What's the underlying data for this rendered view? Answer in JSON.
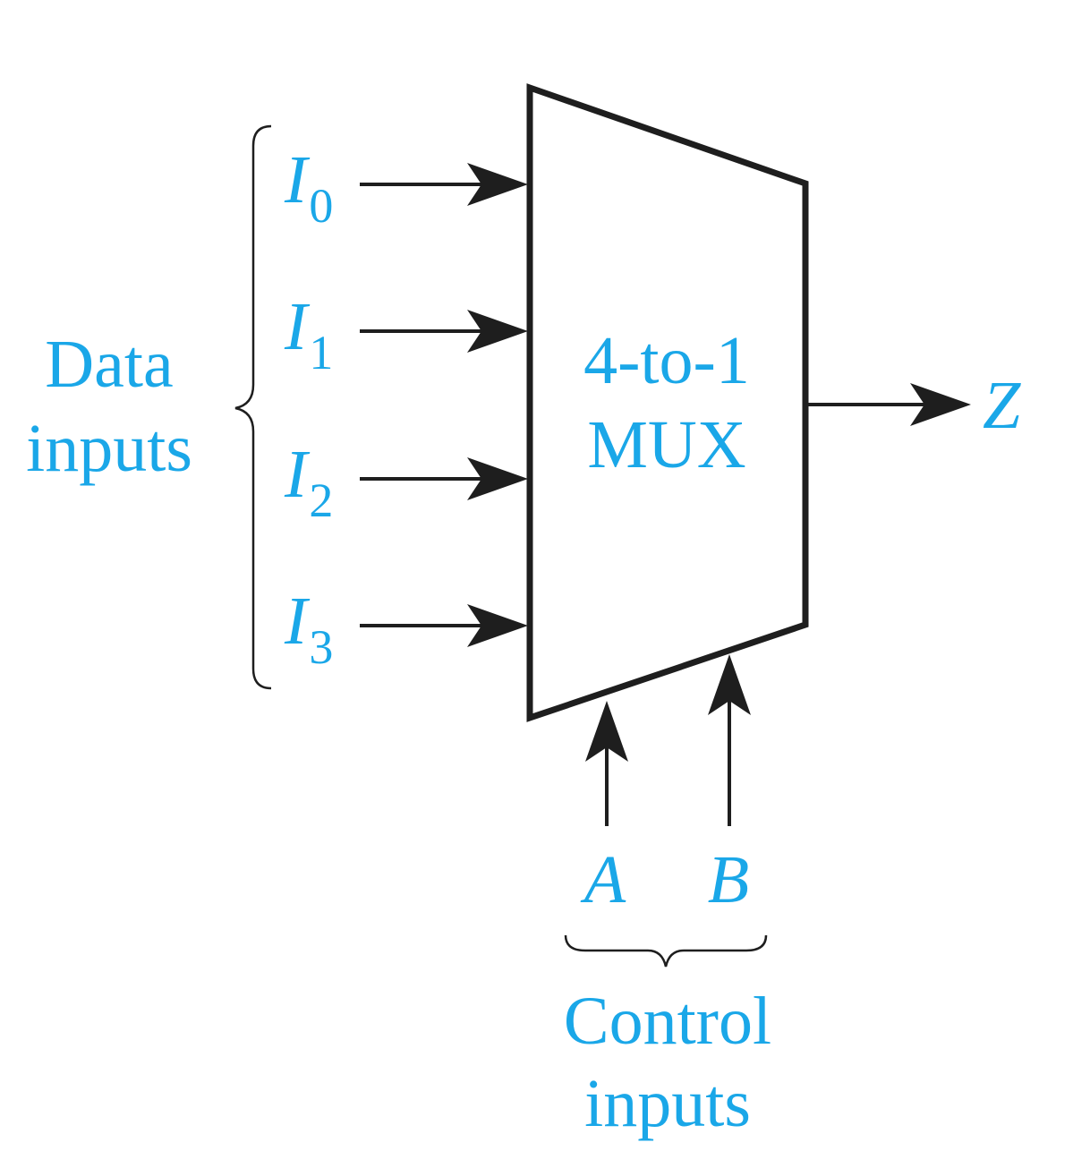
{
  "diagram": {
    "mux_label": [
      "4-to-1",
      "MUX"
    ],
    "data_inputs": [
      {
        "name": "I",
        "sub": "0"
      },
      {
        "name": "I",
        "sub": "1"
      },
      {
        "name": "I",
        "sub": "2"
      },
      {
        "name": "I",
        "sub": "3"
      }
    ],
    "data_inputs_label": [
      "Data",
      "inputs"
    ],
    "control_inputs": [
      "A",
      "B"
    ],
    "control_inputs_label": [
      "Control",
      "inputs"
    ],
    "output": "Z",
    "colors": {
      "label": "#1aa7e8",
      "line": "#1e1e1e",
      "background": "#ffffff"
    }
  }
}
